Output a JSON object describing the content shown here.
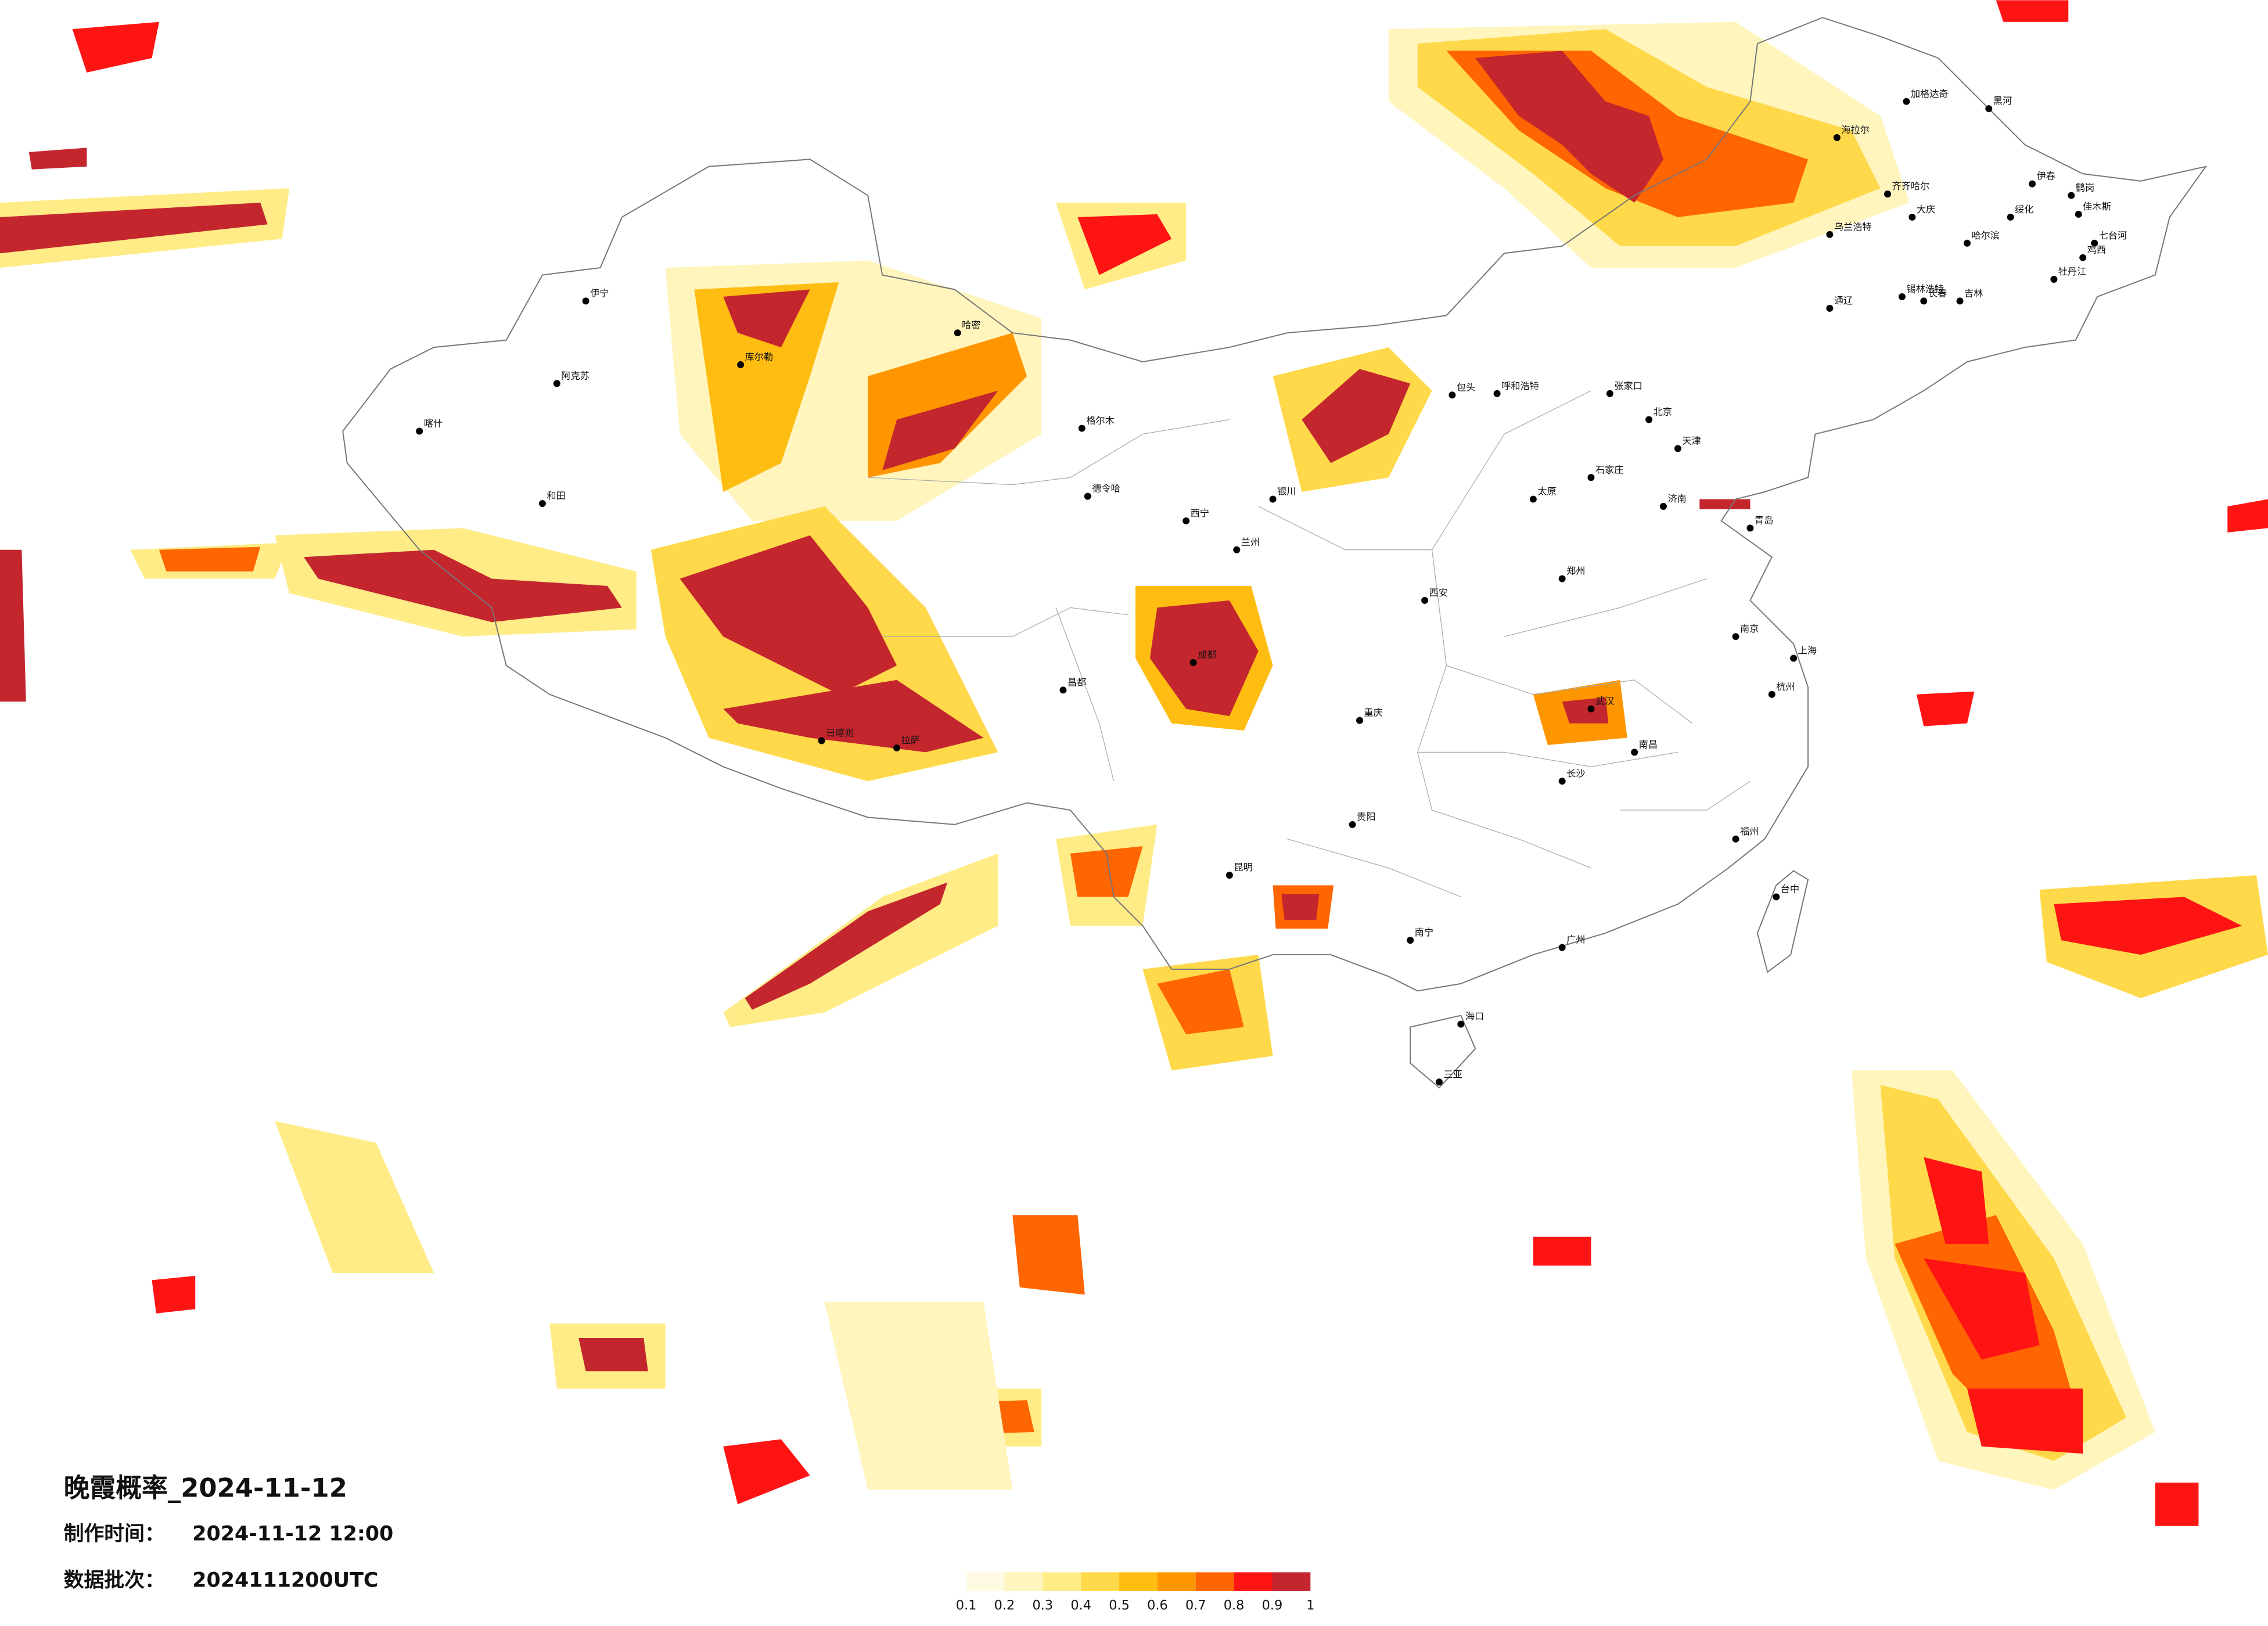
{
  "title": "晚霞概率_2024-11-12",
  "production": {
    "label": "制作时间：",
    "value": "2024-11-12 12:00"
  },
  "batch": {
    "label": "数据批次：",
    "value": "2024111200UTC"
  },
  "colorbar": {
    "ticks": [
      0.1,
      0.2,
      0.3,
      0.4,
      0.5,
      0.6,
      0.7,
      0.8,
      0.9,
      1
    ],
    "colors": [
      "#fffbe3",
      "#fff5bd",
      "#ffec86",
      "#ffd94a",
      "#ffbd12",
      "#ff9600",
      "#ff6500",
      "#ff1414",
      "#c4262e"
    ]
  },
  "cities": [
    "加格达奇",
    "黑河",
    "海拉尔",
    "伊春",
    "鹤岗",
    "佳木斯",
    "七台河",
    "鸡西",
    "齐齐哈尔",
    "大庆",
    "绥化",
    "哈尔滨",
    "牡丹江",
    "乌兰浩特",
    "锡林浩特",
    "长春",
    "吉林",
    "通辽",
    "呼和浩特",
    "包头",
    "张家口",
    "北京",
    "天津",
    "石家庄",
    "太原",
    "济南",
    "青岛",
    "郑州",
    "西安",
    "兰州",
    "西宁",
    "银川",
    "成都",
    "拉萨",
    "重庆",
    "贵阳",
    "昆明",
    "南宁",
    "广州",
    "长沙",
    "武汉",
    "南京",
    "上海",
    "杭州",
    "南昌",
    "福州",
    "台中",
    "海口",
    "三亚",
    "喀什",
    "和田",
    "伊宁",
    "阿克苏",
    "库尔勒",
    "哈密",
    "格尔木",
    "德令哈",
    "日喀则",
    "昌都"
  ]
}
